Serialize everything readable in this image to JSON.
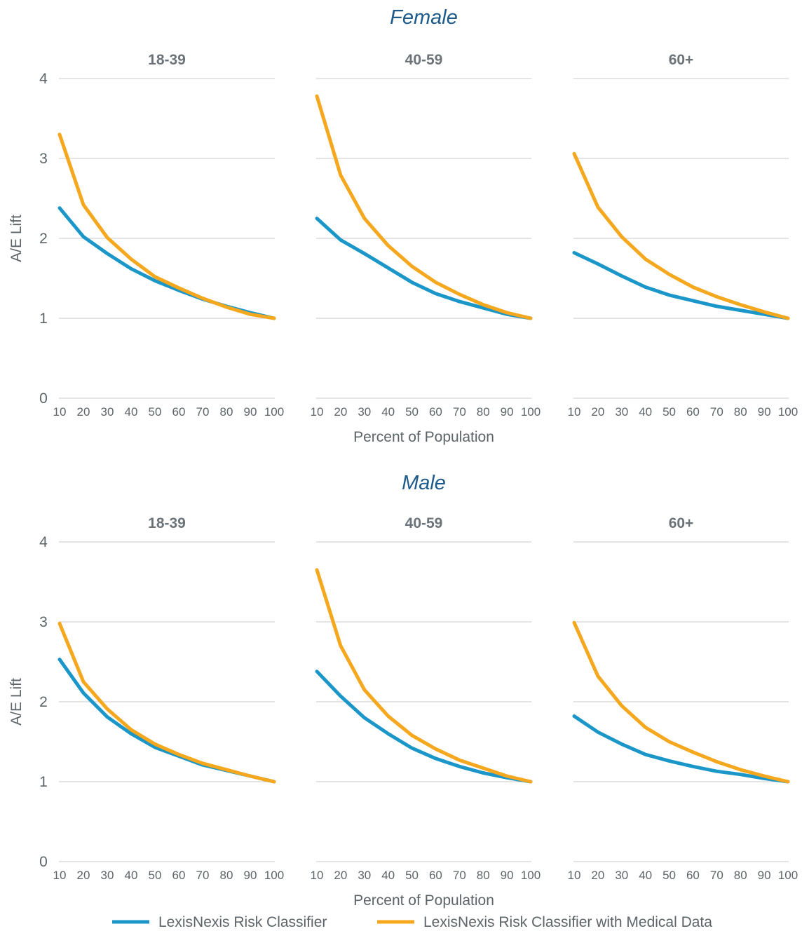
{
  "colors": {
    "series_0": "#1a96c8",
    "series_1": "#f5a71d",
    "grid": "#c9c9c9",
    "group_title": "#1d5a8c"
  },
  "chart_data": {
    "type": "line",
    "ylabel": "A/E Lift",
    "xlabel": "Percent of Population",
    "ylim": [
      0,
      4
    ],
    "yticks": [
      "0",
      "1",
      "2",
      "3",
      "4"
    ],
    "grid": true,
    "legend_position": "bottom",
    "legend": [
      "LexisNexis Risk Classifier",
      "LexisNexis Risk Classifier with Medical Data"
    ],
    "x": [
      "10",
      "20",
      "30",
      "40",
      "50",
      "60",
      "70",
      "80",
      "90",
      "100"
    ],
    "groups": [
      {
        "title": "Female",
        "panels": [
          {
            "title": "18-39",
            "series": [
              {
                "name": "LexisNexis Risk Classifier",
                "values": [
                  2.38,
                  2.02,
                  1.81,
                  1.62,
                  1.47,
                  1.35,
                  1.24,
                  1.15,
                  1.07,
                  1.0
                ]
              },
              {
                "name": "LexisNexis Risk Classifier with Medical Data",
                "values": [
                  3.3,
                  2.42,
                  2.01,
                  1.74,
                  1.52,
                  1.38,
                  1.25,
                  1.14,
                  1.05,
                  1.0
                ]
              }
            ]
          },
          {
            "title": "40-59",
            "series": [
              {
                "name": "LexisNexis Risk Classifier",
                "values": [
                  2.25,
                  1.98,
                  1.81,
                  1.63,
                  1.45,
                  1.31,
                  1.21,
                  1.13,
                  1.05,
                  1.0
                ]
              },
              {
                "name": "LexisNexis Risk Classifier with Medical Data",
                "values": [
                  3.78,
                  2.79,
                  2.25,
                  1.91,
                  1.65,
                  1.45,
                  1.3,
                  1.17,
                  1.07,
                  1.0
                ]
              }
            ]
          },
          {
            "title": "60+",
            "series": [
              {
                "name": "LexisNexis Risk Classifier",
                "values": [
                  1.82,
                  1.68,
                  1.53,
                  1.39,
                  1.29,
                  1.22,
                  1.15,
                  1.1,
                  1.05,
                  1.0
                ]
              },
              {
                "name": "LexisNexis Risk Classifier with Medical Data",
                "values": [
                  3.06,
                  2.39,
                  2.02,
                  1.74,
                  1.55,
                  1.39,
                  1.27,
                  1.17,
                  1.08,
                  1.0
                ]
              }
            ]
          }
        ]
      },
      {
        "title": "Male",
        "panels": [
          {
            "title": "18-39",
            "series": [
              {
                "name": "LexisNexis Risk Classifier",
                "values": [
                  2.53,
                  2.11,
                  1.81,
                  1.6,
                  1.43,
                  1.32,
                  1.21,
                  1.14,
                  1.07,
                  1.0
                ]
              },
              {
                "name": "LexisNexis Risk Classifier with Medical Data",
                "values": [
                  2.98,
                  2.25,
                  1.91,
                  1.65,
                  1.47,
                  1.34,
                  1.23,
                  1.15,
                  1.07,
                  1.0
                ]
              }
            ]
          },
          {
            "title": "40-59",
            "series": [
              {
                "name": "LexisNexis Risk Classifier",
                "values": [
                  2.38,
                  2.07,
                  1.8,
                  1.6,
                  1.42,
                  1.29,
                  1.19,
                  1.11,
                  1.05,
                  1.0
                ]
              },
              {
                "name": "LexisNexis Risk Classifier with Medical Data",
                "values": [
                  3.65,
                  2.7,
                  2.15,
                  1.82,
                  1.58,
                  1.41,
                  1.27,
                  1.17,
                  1.07,
                  1.0
                ]
              }
            ]
          },
          {
            "title": "60+",
            "series": [
              {
                "name": "LexisNexis Risk Classifier",
                "values": [
                  1.82,
                  1.62,
                  1.47,
                  1.34,
                  1.26,
                  1.19,
                  1.13,
                  1.09,
                  1.04,
                  1.0
                ]
              },
              {
                "name": "LexisNexis Risk Classifier with Medical Data",
                "values": [
                  2.99,
                  2.32,
                  1.95,
                  1.68,
                  1.5,
                  1.37,
                  1.25,
                  1.15,
                  1.07,
                  1.0
                ]
              }
            ]
          }
        ]
      }
    ]
  }
}
